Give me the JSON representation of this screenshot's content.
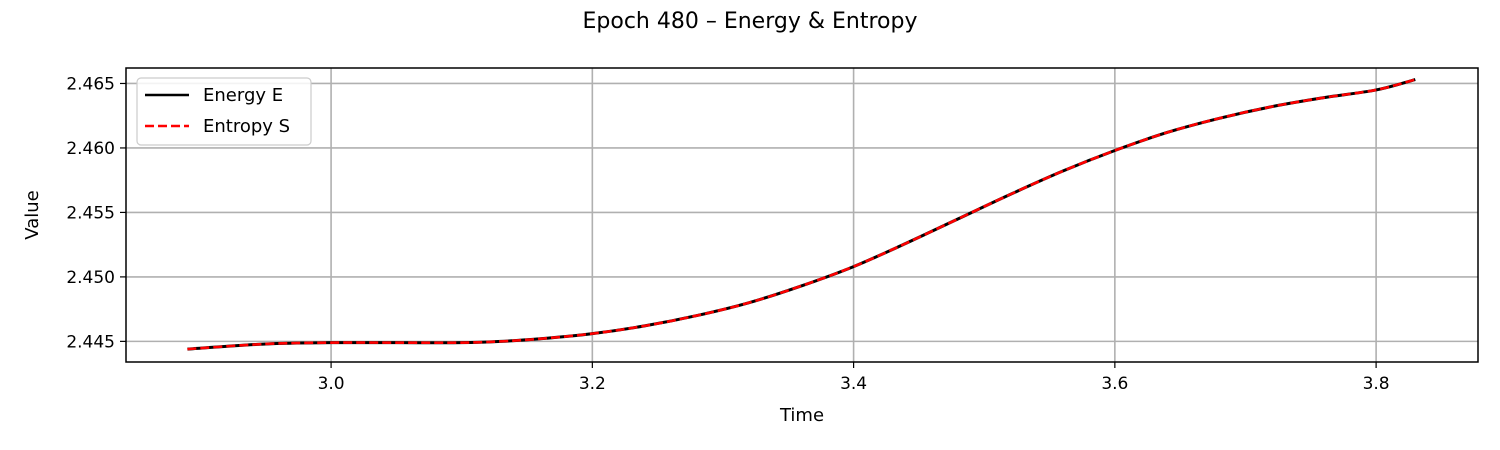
{
  "chart_data": {
    "type": "line",
    "title": "Epoch 480 – Energy & Entropy",
    "xlabel": "Time",
    "ylabel": "Value",
    "xlim": [
      2.843,
      3.878
    ],
    "ylim": [
      2.4434,
      2.4662
    ],
    "xticks": [
      3.0,
      3.2,
      3.4,
      3.6,
      3.8
    ],
    "xtick_labels": [
      "3.0",
      "3.2",
      "3.4",
      "3.6",
      "3.8"
    ],
    "yticks": [
      2.445,
      2.45,
      2.455,
      2.46,
      2.465
    ],
    "ytick_labels": [
      "2.445",
      "2.450",
      "2.455",
      "2.460",
      "2.465"
    ],
    "grid": true,
    "legend_position": "top-left",
    "series": [
      {
        "name": "Energy E",
        "color": "#000000",
        "style": "solid",
        "x": [
          2.89,
          2.95,
          3.0,
          3.05,
          3.1,
          3.13,
          3.16,
          3.2,
          3.24,
          3.28,
          3.32,
          3.36,
          3.4,
          3.44,
          3.48,
          3.52,
          3.56,
          3.6,
          3.64,
          3.68,
          3.72,
          3.76,
          3.8,
          3.83
        ],
        "y": [
          2.4444,
          2.4448,
          2.4449,
          2.4449,
          2.4449,
          2.445,
          2.4452,
          2.4456,
          2.4462,
          2.447,
          2.448,
          2.4493,
          2.4508,
          2.4526,
          2.4545,
          2.4564,
          2.4582,
          2.4598,
          2.4612,
          2.4623,
          2.4632,
          2.4639,
          2.4645,
          2.4653
        ]
      },
      {
        "name": "Entropy S",
        "color": "#ff0000",
        "style": "dashed",
        "x": [
          2.89,
          2.95,
          3.0,
          3.05,
          3.1,
          3.13,
          3.16,
          3.2,
          3.24,
          3.28,
          3.32,
          3.36,
          3.4,
          3.44,
          3.48,
          3.52,
          3.56,
          3.6,
          3.64,
          3.68,
          3.72,
          3.76,
          3.8,
          3.83
        ],
        "y": [
          2.4444,
          2.4448,
          2.4449,
          2.4449,
          2.4449,
          2.445,
          2.4452,
          2.4456,
          2.4462,
          2.447,
          2.448,
          2.4493,
          2.4508,
          2.4526,
          2.4545,
          2.4564,
          2.4582,
          2.4598,
          2.4612,
          2.4623,
          2.4632,
          2.4639,
          2.4645,
          2.4653
        ]
      }
    ]
  }
}
